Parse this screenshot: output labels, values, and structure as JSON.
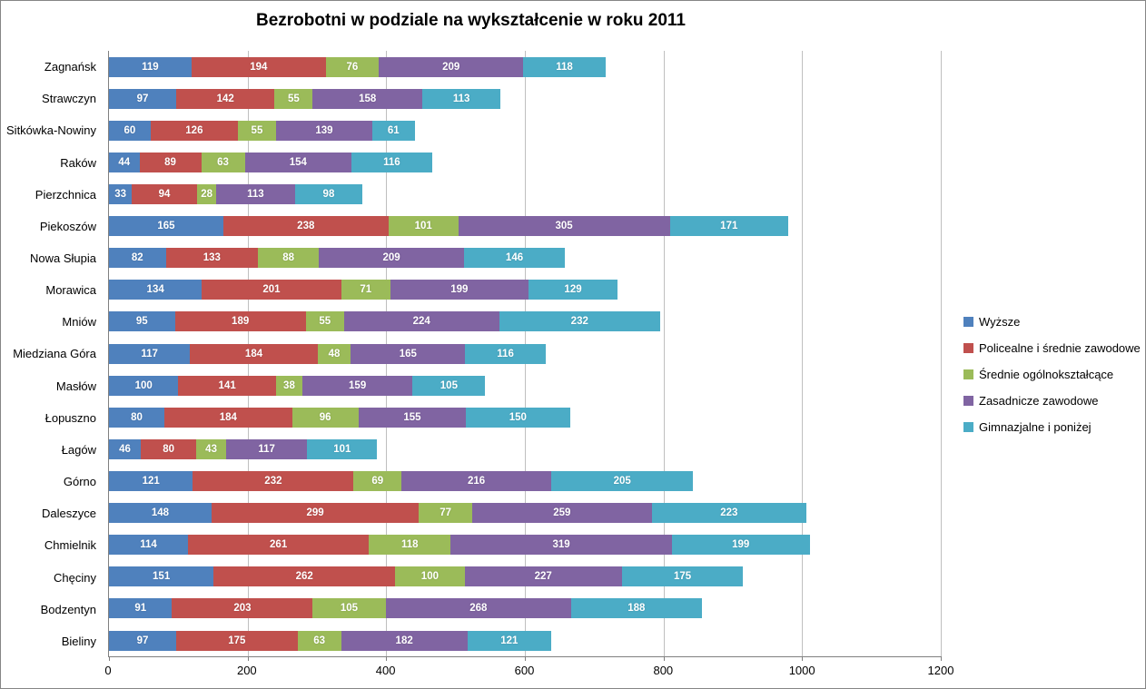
{
  "title": "Bezrobotni w podziale na wykształcenie w roku 2011",
  "chart_data": {
    "type": "bar",
    "orientation": "horizontal",
    "stacked": true,
    "title": "Bezrobotni w podziale na wykształcenie w roku 2011",
    "categories": [
      "Zagnańsk",
      "Strawczyn",
      "Sitkówka-Nowiny",
      "Raków",
      "Pierzchnica",
      "Piekoszów",
      "Nowa Słupia",
      "Morawica",
      "Mniów",
      "Miedziana Góra",
      "Masłów",
      "Łopuszno",
      "Łagów",
      "Górno",
      "Daleszyce",
      "Chmielnik",
      "Chęciny",
      "Bodzentyn",
      "Bieliny"
    ],
    "series": [
      {
        "name": "Wyższe",
        "color": "#4F81BD",
        "values": [
          119,
          97,
          60,
          44,
          33,
          165,
          82,
          134,
          95,
          117,
          100,
          80,
          46,
          121,
          148,
          114,
          151,
          91,
          97
        ]
      },
      {
        "name": "Policealne i średnie zawodowe",
        "color": "#C0504D",
        "values": [
          194,
          142,
          126,
          89,
          94,
          238,
          133,
          201,
          189,
          184,
          141,
          184,
          80,
          232,
          299,
          261,
          262,
          203,
          175
        ]
      },
      {
        "name": "Średnie ogólnokształcące",
        "color": "#9BBB59",
        "values": [
          76,
          55,
          55,
          63,
          28,
          101,
          88,
          71,
          55,
          48,
          38,
          96,
          43,
          69,
          77,
          118,
          100,
          105,
          63
        ]
      },
      {
        "name": "Zasadnicze zawodowe",
        "color": "#8064A2",
        "values": [
          209,
          158,
          139,
          154,
          113,
          305,
          209,
          199,
          224,
          165,
          159,
          155,
          117,
          216,
          259,
          319,
          227,
          268,
          182
        ]
      },
      {
        "name": "Gimnazjalne i poniżej",
        "color": "#4BACC6",
        "values": [
          118,
          113,
          61,
          116,
          98,
          171,
          146,
          129,
          232,
          116,
          105,
          150,
          101,
          205,
          223,
          199,
          175,
          188,
          121
        ]
      }
    ],
    "xlim": [
      0,
      1200
    ],
    "x_ticks": [
      0,
      200,
      400,
      600,
      800,
      1000,
      1200
    ],
    "grid": "vertical",
    "legend_position": "right",
    "data_labels": true
  }
}
